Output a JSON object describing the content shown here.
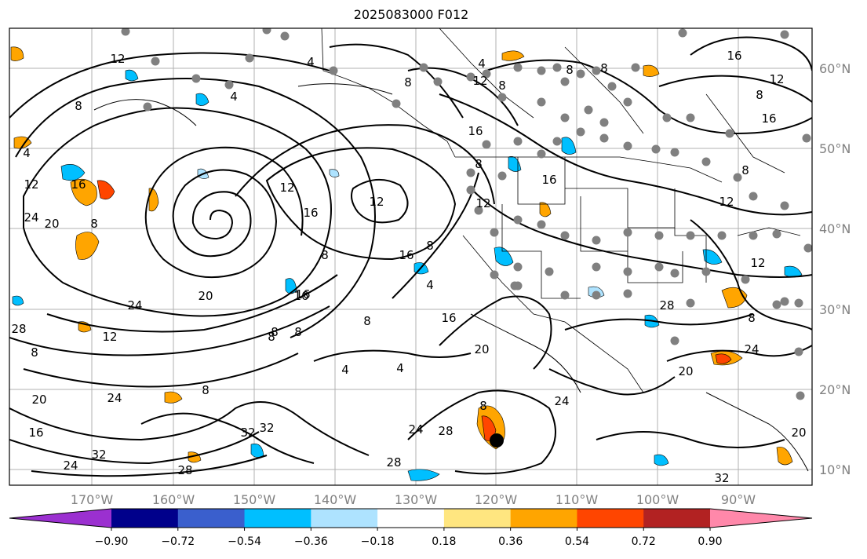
{
  "title": "2025083000 F012",
  "map": {
    "lat_labels": [
      "60°N",
      "50°N",
      "40°N",
      "30°N",
      "20°N",
      "10°N"
    ],
    "lon_labels": [
      "170°W",
      "160°W",
      "150°W",
      "140°W",
      "130°W",
      "120°W",
      "110°W",
      "100°W",
      "90°W"
    ],
    "contour_labels": [
      "4",
      "8",
      "12",
      "16",
      "20",
      "24",
      "28",
      "32"
    ]
  },
  "colorbar": {
    "colors": [
      "#9b30d0",
      "#00008b",
      "#3a5fcd",
      "#00bfff",
      "#aee3ff",
      "#ffffff",
      "#ffe680",
      "#ffa500",
      "#ff4500",
      "#b22222",
      "#ff88aa"
    ],
    "tick_labels": [
      "−0.90",
      "−0.72",
      "−0.54",
      "−0.36",
      "−0.18",
      "0.18",
      "0.36",
      "0.54",
      "0.72",
      "0.90"
    ]
  }
}
